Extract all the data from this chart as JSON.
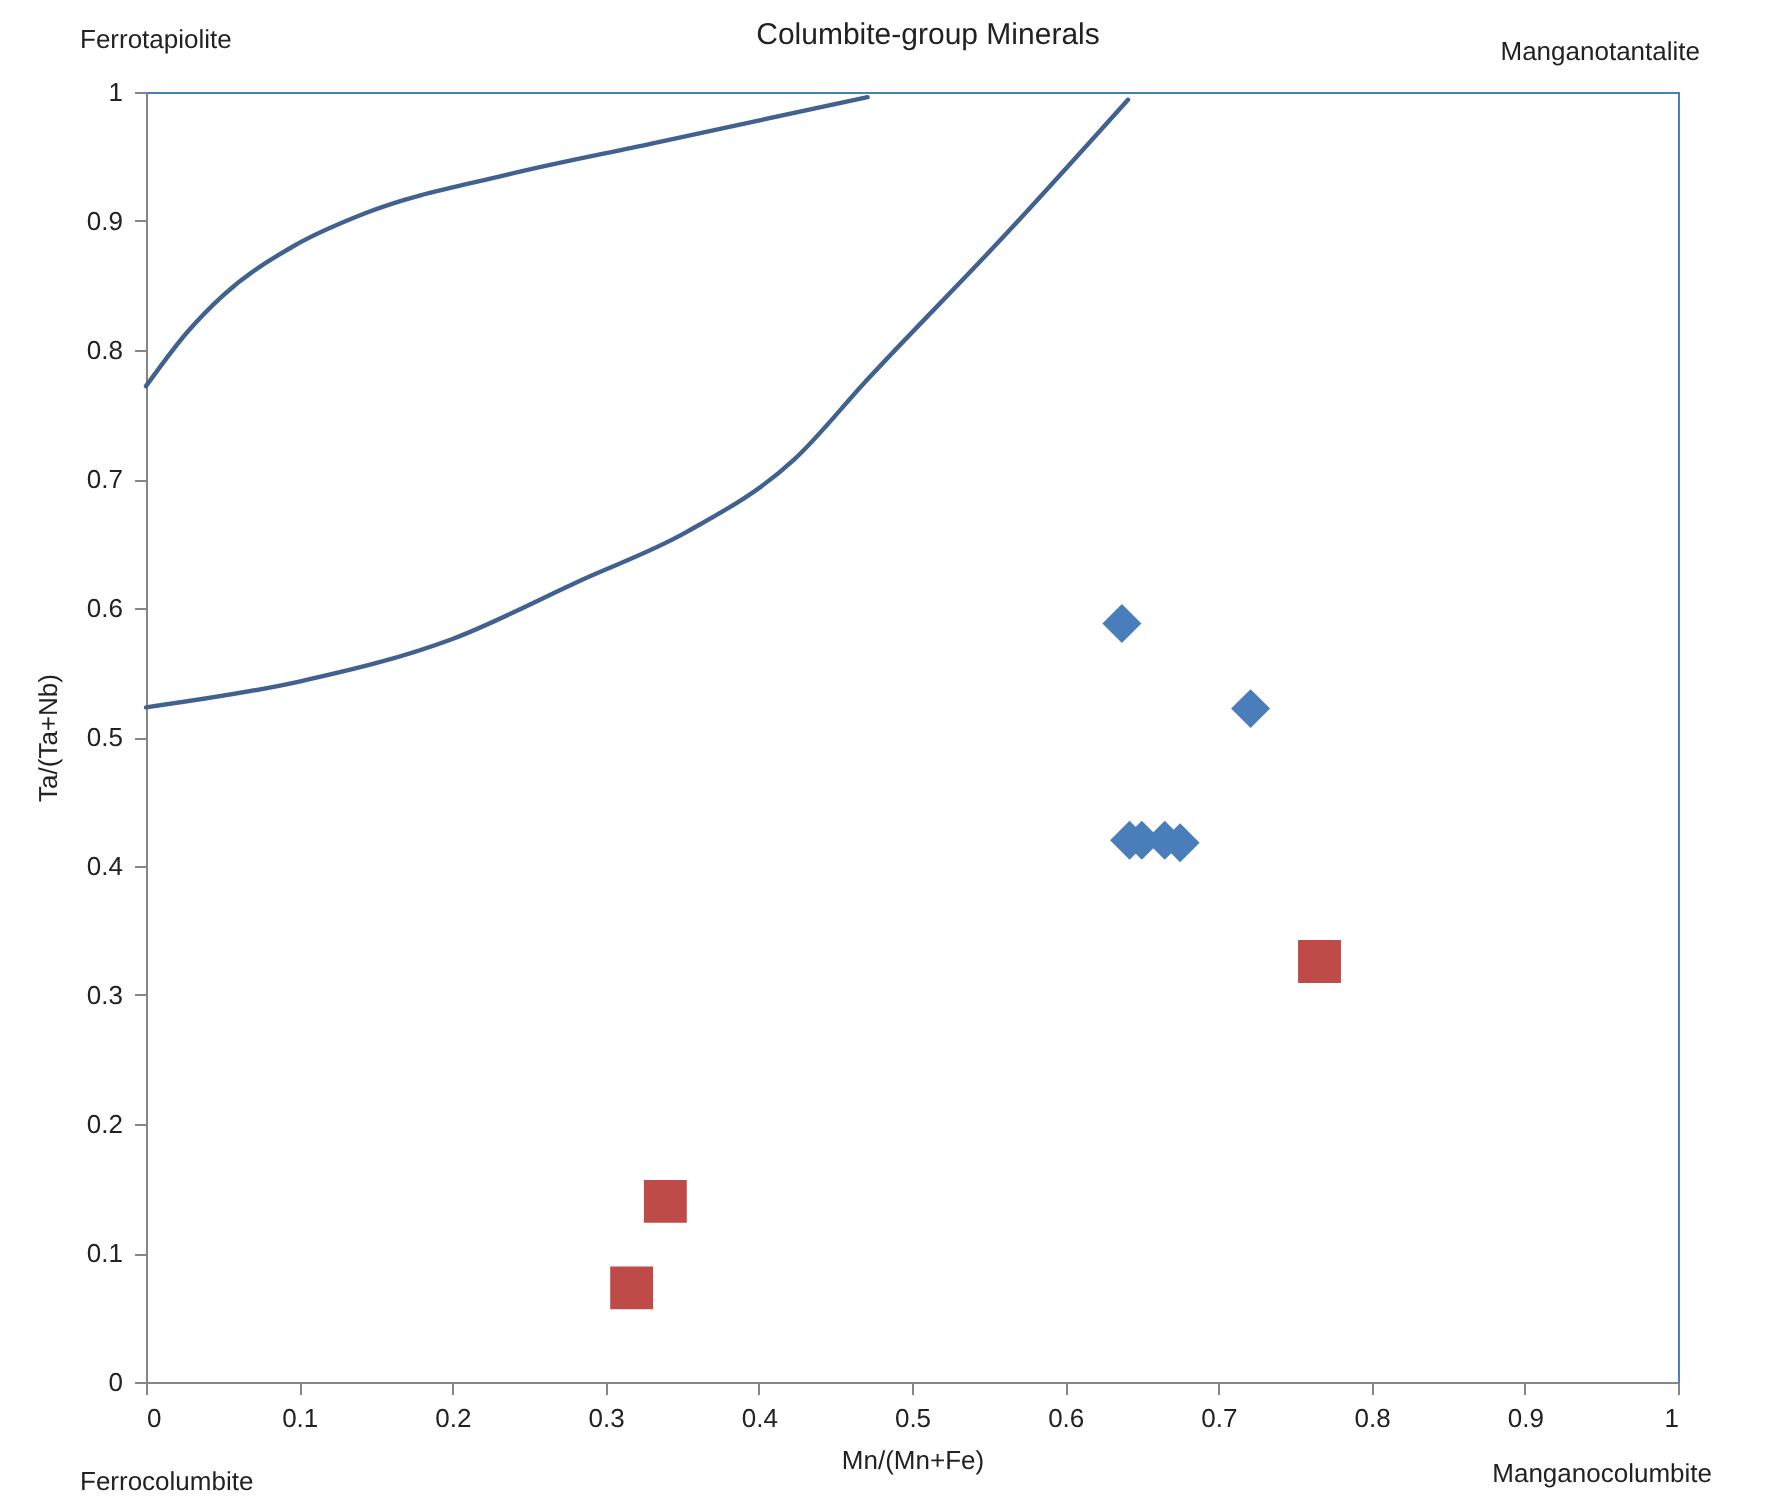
{
  "chart_data": {
    "type": "scatter",
    "title": "Columbite-group Minerals",
    "xlabel": "Mn/(Mn+Fe)",
    "ylabel": "Ta/(Ta+Nb)",
    "xlim": [
      0,
      1
    ],
    "ylim": [
      0,
      1
    ],
    "xticks": [
      0,
      0.1,
      0.2,
      0.3,
      0.4,
      0.5,
      0.6,
      0.7,
      0.8,
      0.9,
      1
    ],
    "yticks": [
      0,
      0.1,
      0.2,
      0.3,
      0.4,
      0.5,
      0.6,
      0.7,
      0.8,
      0.9,
      1
    ],
    "grid": false,
    "annotations": [
      "Ferrotapiolite",
      "Manganotantalite",
      "Ferrocolumbite",
      "Manganocolumbite"
    ],
    "series": [
      {
        "marker": "diamond",
        "color": "#4a7ebb",
        "x": [
          0.637,
          0.721,
          0.642,
          0.65,
          0.665,
          0.675
        ],
        "values": [
          0.588,
          0.522,
          0.42,
          0.42,
          0.42,
          0.418
        ]
      },
      {
        "marker": "square",
        "color": "#be4b48",
        "x": [
          0.766,
          0.339,
          0.317
        ],
        "values": [
          0.326,
          0.14,
          0.073
        ]
      },
      {
        "type": "line",
        "line_style": "solid",
        "color": "#41618f",
        "x": [
          0,
          0.027,
          0.05,
          0.097,
          0.143,
          0.236,
          0.33,
          0.471
        ],
        "values": [
          0.772,
          0.814,
          0.842,
          0.881,
          0.906,
          0.936,
          0.96,
          0.996
        ]
      },
      {
        "type": "line",
        "line_style": "solid",
        "color": "#41618f",
        "x": [
          0,
          0.1,
          0.2,
          0.283,
          0.353,
          0.423,
          0.47,
          0.563,
          0.641
        ],
        "values": [
          0.523,
          0.543,
          0.576,
          0.621,
          0.659,
          0.715,
          0.776,
          0.892,
          0.994
        ]
      }
    ]
  }
}
